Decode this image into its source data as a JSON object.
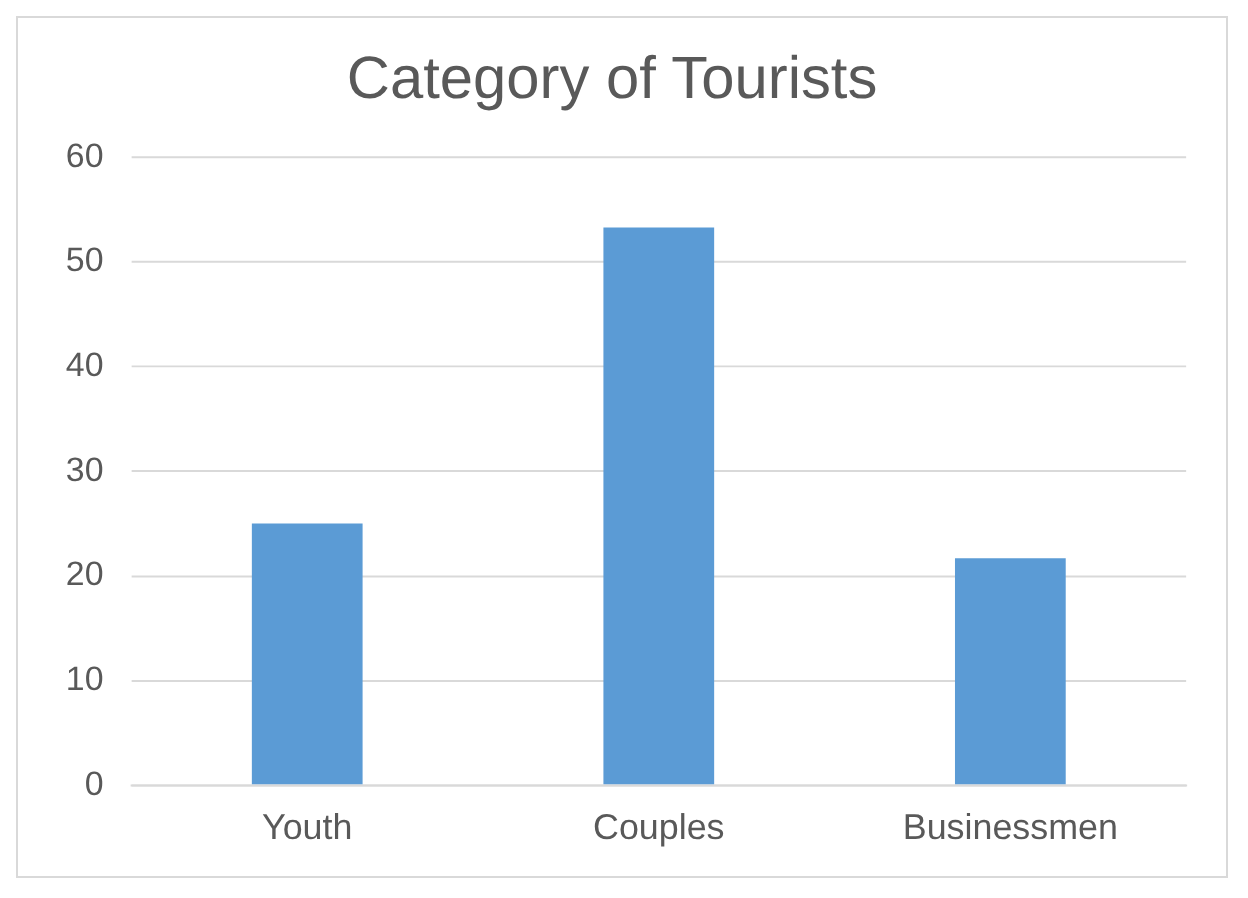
{
  "chart_data": {
    "type": "bar",
    "title": "Category of Tourists",
    "categories": [
      "Youth",
      "Couples",
      "Businessmen"
    ],
    "values": [
      25,
      53.3,
      21.7
    ],
    "color": "#5b9bd5",
    "ylim": [
      0,
      60
    ],
    "yticks": [
      0,
      10,
      20,
      30,
      40,
      50,
      60
    ],
    "grid": "y",
    "legend": false
  }
}
